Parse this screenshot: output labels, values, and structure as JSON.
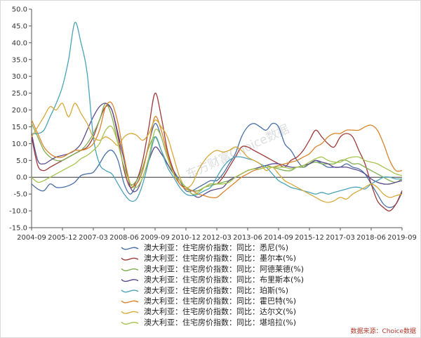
{
  "watermark": "东方财富Choice数据",
  "source_note": "数据来源：Choice数据",
  "chart_data": {
    "type": "line",
    "title": "",
    "xlabel": "",
    "ylabel": "",
    "ylim": [
      -15,
      50
    ],
    "yticks": [
      -15,
      -10,
      -5,
      0,
      5,
      10,
      15,
      20,
      25,
      30,
      35,
      40,
      45,
      50
    ],
    "ytick_labels": [
      "-15.0",
      "-10.0",
      "-5.0",
      "0.0",
      "5.0",
      "10.0",
      "15.0",
      "20.0",
      "25.0",
      "30.0",
      "35.0",
      "40.0",
      "45.0",
      "50.0"
    ],
    "x_start_index": 0,
    "x_end_index": 60,
    "x_tick_labels": [
      {
        "label": "2004-09",
        "index": 0
      },
      {
        "label": "2005-12",
        "index": 5
      },
      {
        "label": "2007-03",
        "index": 10
      },
      {
        "label": "2008-06",
        "index": 15
      },
      {
        "label": "2009-09",
        "index": 20
      },
      {
        "label": "2010-12",
        "index": 25
      },
      {
        "label": "2012-03",
        "index": 30
      },
      {
        "label": "2013-06",
        "index": 35
      },
      {
        "label": "2014-09",
        "index": 40
      },
      {
        "label": "2015-12",
        "index": 45
      },
      {
        "label": "2017-03",
        "index": 50
      },
      {
        "label": "2018-06",
        "index": 55
      },
      {
        "label": "2019-09",
        "index": 60
      }
    ],
    "grid": false,
    "zero_line": true,
    "legend_position": "bottom",
    "series": [
      {
        "name": "澳大利亚：住宅房价指数：同比：悉尼(%)",
        "color": "#4a6fa5",
        "values": [
          -2.0,
          -3.5,
          -4.0,
          -2.0,
          -3.0,
          -3.0,
          -2.5,
          -1.5,
          0.5,
          1.0,
          1.5,
          4.0,
          7.0,
          8.0,
          5.0,
          -2.0,
          -5.0,
          -2.0,
          2.0,
          10.0,
          16.0,
          12.0,
          6.0,
          2.0,
          -1.0,
          -4.0,
          -4.0,
          -3.0,
          -2.0,
          -1.0,
          -1.0,
          1.0,
          4.0,
          7.0,
          12.0,
          15.0,
          16.0,
          15.0,
          14.0,
          16.0,
          15.0,
          10.0,
          8.0,
          5.0,
          3.0,
          4.0,
          5.0,
          4.0,
          3.0,
          3.0,
          3.0,
          4.0,
          3.0,
          2.5,
          1.0,
          -2.0,
          -5.0,
          -8.0,
          -9.0,
          -8.0,
          -4.5
        ]
      },
      {
        "name": "澳大利亚：住宅房价指数：同比：墨尔本(%)",
        "color": "#9e3a3a",
        "values": [
          12.0,
          3.5,
          2.0,
          3.0,
          4.0,
          5.0,
          6.0,
          7.0,
          8.0,
          9.0,
          12.0,
          17.0,
          21.0,
          20.0,
          12.0,
          2.0,
          -3.0,
          -1.0,
          5.0,
          15.0,
          25.0,
          18.0,
          8.0,
          2.0,
          -2.0,
          -3.0,
          -4.0,
          -4.0,
          -3.0,
          -2.0,
          -2.0,
          0.0,
          3.0,
          6.0,
          9.0,
          9.0,
          8.0,
          7.0,
          6.0,
          5.0,
          4.0,
          3.0,
          5.0,
          6.0,
          8.0,
          11.0,
          14.0,
          12.0,
          10.0,
          9.0,
          12.0,
          13.0,
          12.0,
          8.0,
          4.0,
          -2.0,
          -7.0,
          -9.0,
          -10.0,
          -8.0,
          -4.0
        ]
      },
      {
        "name": "澳大利亚：住宅房价指数：同比：阿德莱德(%)",
        "color": "#7fae4f",
        "values": [
          16.0,
          12.0,
          8.0,
          6.0,
          5.0,
          5.0,
          6.0,
          7.0,
          8.0,
          10.0,
          13.0,
          17.0,
          22.0,
          18.0,
          10.0,
          3.0,
          -2.0,
          -1.0,
          3.0,
          9.0,
          12.0,
          8.0,
          4.0,
          1.0,
          -1.0,
          -3.0,
          -4.0,
          -4.0,
          -3.0,
          -2.5,
          -2.0,
          -1.5,
          -1.0,
          0.0,
          1.0,
          2.0,
          2.5,
          3.0,
          3.5,
          3.0,
          2.5,
          2.0,
          2.0,
          3.0,
          3.0,
          4.0,
          4.5,
          4.0,
          4.0,
          4.0,
          5.0,
          5.0,
          4.0,
          4.0,
          3.0,
          2.0,
          1.0,
          0.0,
          -1.0,
          -1.5,
          -0.5
        ]
      },
      {
        "name": "澳大利亚：住宅房价指数：同比：布里斯本(%)",
        "color": "#5c4a8c",
        "values": [
          13.0,
          5.0,
          4.0,
          5.0,
          6.0,
          6.5,
          7.0,
          8.0,
          10.0,
          14.0,
          18.0,
          21.0,
          22.0,
          20.0,
          13.0,
          5.0,
          -3.0,
          -4.0,
          0.0,
          5.0,
          9.0,
          7.0,
          4.0,
          1.0,
          -1.0,
          -3.0,
          -5.0,
          -6.0,
          -5.0,
          -4.0,
          -3.5,
          -3.0,
          -1.0,
          0.0,
          1.0,
          2.0,
          2.5,
          3.0,
          3.5,
          4.0,
          4.0,
          3.5,
          3.0,
          3.0,
          3.5,
          4.0,
          5.0,
          4.5,
          4.0,
          3.0,
          3.0,
          3.0,
          2.5,
          2.0,
          1.0,
          -0.5,
          -1.5,
          -2.0,
          -2.0,
          -1.5,
          -1.0
        ]
      },
      {
        "name": "澳大利亚：住宅房价指数：同比：珀斯(%)",
        "color": "#4aa3b8",
        "values": [
          13.0,
          13.0,
          14.0,
          18.0,
          22.0,
          27.0,
          35.0,
          46.0,
          40.0,
          31.0,
          12.0,
          4.0,
          2.0,
          1.0,
          -2.0,
          -5.0,
          -7.0,
          -6.5,
          -2.0,
          5.0,
          12.0,
          8.0,
          3.0,
          0.0,
          -3.0,
          -5.0,
          -5.5,
          -5.0,
          -4.0,
          -3.0,
          0.0,
          3.0,
          5.0,
          6.0,
          6.0,
          5.5,
          5.0,
          4.0,
          3.0,
          1.0,
          -1.0,
          -2.0,
          -3.0,
          -3.5,
          -4.0,
          -4.5,
          -5.0,
          -4.5,
          -5.0,
          -4.5,
          -4.0,
          -3.5,
          -3.0,
          -3.0,
          -3.5,
          -2.0,
          -1.0,
          0.0,
          0.0,
          -0.5,
          -0.5
        ]
      },
      {
        "name": "澳大利亚：住宅房价指数：同比：霍巴特(%)",
        "color": "#d9842c",
        "values": [
          17.0,
          13.0,
          9.0,
          7.0,
          6.0,
          6.0,
          7.0,
          8.0,
          8.0,
          8.5,
          10.0,
          14.0,
          21.0,
          22.0,
          16.0,
          6.0,
          -2.0,
          -2.0,
          2.0,
          10.0,
          18.0,
          14.0,
          7.0,
          1.0,
          -2.0,
          -3.5,
          -4.0,
          -5.0,
          -5.5,
          -6.0,
          -6.0,
          -4.5,
          -3.0,
          -1.5,
          0.0,
          1.0,
          2.0,
          2.5,
          3.0,
          3.0,
          3.5,
          4.0,
          4.5,
          5.0,
          6.0,
          7.0,
          9.0,
          10.0,
          12.0,
          13.0,
          13.0,
          14.0,
          14.0,
          14.0,
          15.0,
          15.5,
          14.0,
          10.0,
          5.0,
          2.0,
          2.0
        ]
      },
      {
        "name": "澳大利亚：住宅房价指数：同比：达尔文(%)",
        "color": "#d6a93a",
        "values": [
          12.0,
          15.0,
          18.0,
          21.0,
          20.0,
          22.0,
          18.0,
          22.0,
          19.0,
          16.0,
          12.0,
          11.0,
          12.0,
          11.0,
          9.5,
          12.0,
          13.0,
          12.5,
          11.0,
          13.0,
          17.0,
          15.0,
          12.0,
          6.0,
          0.0,
          -3.0,
          -2.0,
          2.0,
          5.0,
          7.0,
          8.0,
          7.5,
          8.0,
          9.0,
          8.0,
          6.0,
          5.0,
          4.0,
          2.0,
          3.0,
          1.0,
          -1.0,
          -2.0,
          -3.0,
          -4.0,
          -5.0,
          -6.0,
          -7.0,
          -7.5,
          -7.0,
          -6.0,
          -6.5,
          -5.0,
          -4.0,
          -3.0,
          -2.0,
          -3.0,
          -5.0,
          -6.0,
          -5.5,
          -5.0
        ]
      },
      {
        "name": "澳大利亚：住宅房价指数：同比：堪培拉(%)",
        "color": "#a6c44e",
        "values": [
          0.0,
          -1.5,
          -1.0,
          0.0,
          1.0,
          2.0,
          3.0,
          4.0,
          5.5,
          6.5,
          8.0,
          10.0,
          14.0,
          15.0,
          10.0,
          3.0,
          -2.0,
          -3.0,
          0.0,
          6.0,
          14.0,
          12.0,
          6.0,
          1.0,
          -1.0,
          -3.0,
          -5.0,
          -4.5,
          -3.0,
          -2.0,
          -2.0,
          -2.0,
          -1.5,
          0.0,
          1.0,
          2.0,
          2.5,
          2.5,
          3.0,
          3.0,
          3.0,
          3.0,
          2.5,
          3.0,
          3.5,
          4.5,
          5.5,
          6.0,
          5.0,
          4.5,
          4.5,
          5.5,
          6.0,
          6.0,
          5.0,
          4.5,
          4.0,
          3.0,
          2.0,
          1.0,
          0.5
        ]
      }
    ]
  }
}
